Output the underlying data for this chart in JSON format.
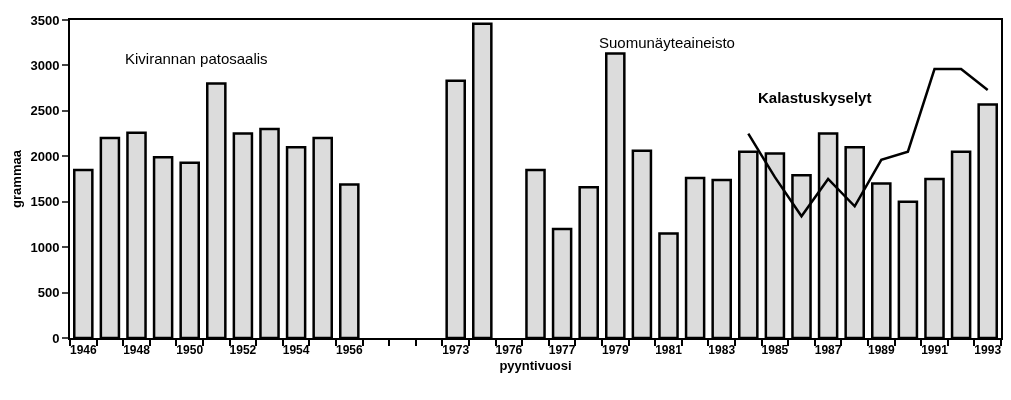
{
  "chart_data": {
    "type": "bar",
    "xlabel": "pyyntivuosi",
    "ylabel": "grammaa",
    "categories": [
      "1946",
      null,
      "1948",
      null,
      "1950",
      null,
      "1952",
      null,
      "1954",
      null,
      "1956",
      null,
      null,
      null,
      "1973",
      null,
      "1976",
      null,
      "1977",
      null,
      "1979",
      null,
      "1981",
      null,
      "1983",
      null,
      "1985",
      null,
      "1987",
      null,
      "1989",
      null,
      "1991",
      null,
      "1993"
    ],
    "series": [
      {
        "color": "#dcdcdc",
        "values": [
          1850,
          2200,
          2260,
          1990,
          1930,
          2800,
          2250,
          2300,
          2100,
          2200,
          1690,
          null,
          null,
          null,
          2830,
          3460,
          null,
          1850,
          1200,
          1660,
          3130,
          2060,
          1150,
          1760,
          1740,
          2050,
          2030,
          1790,
          2250,
          2100,
          1700,
          1500,
          1750,
          2050,
          2570
        ]
      },
      {
        "type": "line",
        "name": "Kalastuskyselyt",
        "color": "#000000",
        "values": [
          null,
          null,
          null,
          null,
          null,
          null,
          null,
          null,
          null,
          null,
          null,
          null,
          null,
          null,
          null,
          null,
          null,
          null,
          null,
          null,
          null,
          null,
          null,
          null,
          null,
          2250,
          1770,
          1340,
          1750,
          1450,
          1960,
          2050,
          2960,
          2960,
          2730
        ]
      }
    ],
    "annotations": [
      "Kivirannan patosaalis",
      "Suomunäyteaineisto"
    ],
    "ylim": [
      0,
      3500
    ],
    "yticks": [
      0,
      500,
      1000,
      1500,
      2000,
      2500,
      3000,
      3500
    ],
    "legend": false,
    "marker": "none",
    "line_style": "solid"
  }
}
